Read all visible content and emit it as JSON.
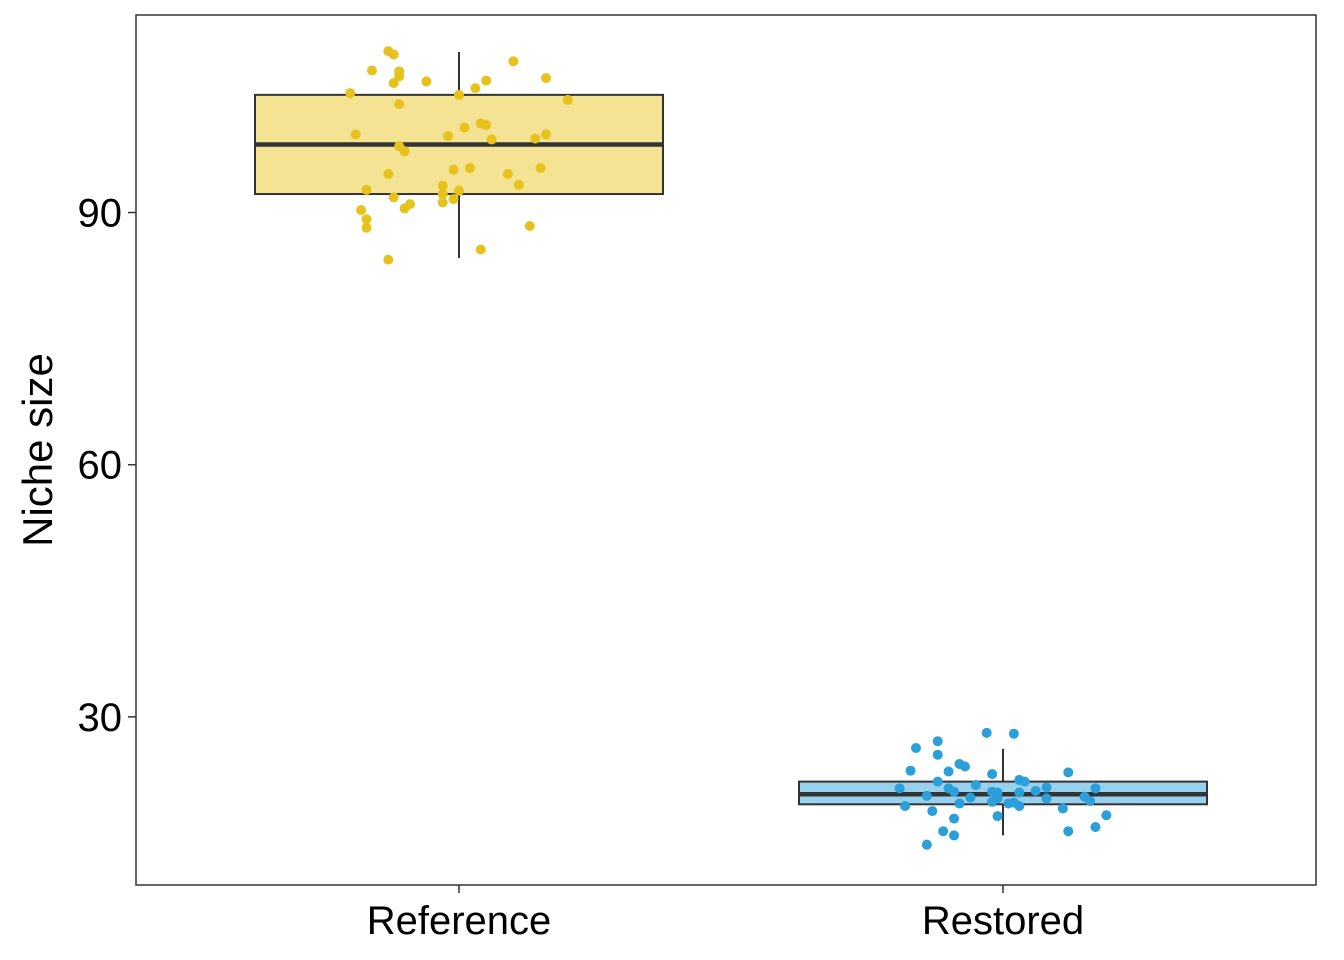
{
  "chart_data": {
    "type": "box",
    "title": "",
    "xlabel": "",
    "ylabel": "Niche size",
    "ylim": [
      10,
      113.5
    ],
    "yticks": [
      30,
      60,
      90
    ],
    "grid": false,
    "legend": "none",
    "categories": [
      "Reference",
      "Restored"
    ],
    "groups": [
      {
        "category": "Reference",
        "fill": "#f5e394",
        "point_color": "#e8c21c",
        "box": {
          "whisker_low": 84.6,
          "q1": 92.2,
          "median": 98.1,
          "q3": 104.0,
          "whisker_high": 109.1
        },
        "points": [
          [
            -0.13,
            109.2
          ],
          [
            -0.12,
            108.8
          ],
          [
            0.1,
            108.0
          ],
          [
            -0.16,
            106.9
          ],
          [
            -0.11,
            106.8
          ],
          [
            -0.11,
            106.2
          ],
          [
            0.16,
            106.0
          ],
          [
            0.05,
            105.7
          ],
          [
            -0.06,
            105.6
          ],
          [
            -0.12,
            105.4
          ],
          [
            0.03,
            104.8
          ],
          [
            -0.2,
            104.2
          ],
          [
            0.0,
            104.0
          ],
          [
            0.2,
            103.4
          ],
          [
            -0.11,
            102.9
          ],
          [
            0.04,
            100.6
          ],
          [
            0.05,
            100.4
          ],
          [
            0.01,
            100.1
          ],
          [
            -0.19,
            99.3
          ],
          [
            0.16,
            99.3
          ],
          [
            -0.02,
            99.1
          ],
          [
            0.14,
            98.8
          ],
          [
            0.06,
            98.7
          ],
          [
            -0.11,
            97.9
          ],
          [
            -0.1,
            97.3
          ],
          [
            0.15,
            95.3
          ],
          [
            0.02,
            95.3
          ],
          [
            -0.01,
            95.1
          ],
          [
            -0.13,
            94.6
          ],
          [
            0.09,
            94.6
          ],
          [
            0.11,
            93.3
          ],
          [
            -0.03,
            93.2
          ],
          [
            -0.17,
            92.7
          ],
          [
            0.0,
            92.6
          ],
          [
            -0.03,
            92.2
          ],
          [
            -0.12,
            91.8
          ],
          [
            -0.01,
            91.6
          ],
          [
            -0.03,
            91.2
          ],
          [
            -0.09,
            91.0
          ],
          [
            -0.1,
            90.5
          ],
          [
            -0.18,
            90.3
          ],
          [
            -0.17,
            89.2
          ],
          [
            0.13,
            88.4
          ],
          [
            -0.17,
            88.2
          ],
          [
            0.04,
            85.6
          ],
          [
            -0.13,
            84.4
          ]
        ]
      },
      {
        "category": "Restored",
        "fill": "#98d1ee",
        "point_color": "#2a9fd9",
        "box": {
          "whisker_low": 15.9,
          "q1": 19.6,
          "median": 20.8,
          "q3": 22.3,
          "whisker_high": 26.2
        },
        "points": [
          [
            -0.03,
            28.1
          ],
          [
            0.02,
            28.0
          ],
          [
            -0.12,
            27.1
          ],
          [
            -0.16,
            26.3
          ],
          [
            -0.12,
            25.5
          ],
          [
            -0.08,
            24.4
          ],
          [
            -0.07,
            24.1
          ],
          [
            -0.17,
            23.6
          ],
          [
            -0.1,
            23.5
          ],
          [
            0.12,
            23.4
          ],
          [
            -0.02,
            23.2
          ],
          [
            0.03,
            22.5
          ],
          [
            0.04,
            22.3
          ],
          [
            -0.12,
            22.3
          ],
          [
            -0.05,
            21.9
          ],
          [
            0.08,
            21.6
          ],
          [
            -0.1,
            21.5
          ],
          [
            0.17,
            21.5
          ],
          [
            0.06,
            21.2
          ],
          [
            -0.19,
            21.5
          ],
          [
            -0.09,
            21.1
          ],
          [
            -0.02,
            21.1
          ],
          [
            0.03,
            21.0
          ],
          [
            -0.01,
            21.0
          ],
          [
            -0.14,
            20.6
          ],
          [
            -0.06,
            20.4
          ],
          [
            0.15,
            20.5
          ],
          [
            0.08,
            20.3
          ],
          [
            -0.01,
            20.3
          ],
          [
            -0.02,
            19.9
          ],
          [
            0.01,
            19.7
          ],
          [
            0.16,
            20.0
          ],
          [
            -0.08,
            19.7
          ],
          [
            0.02,
            19.8
          ],
          [
            0.03,
            19.4
          ],
          [
            -0.18,
            19.4
          ],
          [
            0.11,
            19.1
          ],
          [
            -0.13,
            18.8
          ],
          [
            0.19,
            18.3
          ],
          [
            -0.01,
            18.2
          ],
          [
            -0.09,
            17.9
          ],
          [
            0.17,
            16.9
          ],
          [
            0.12,
            16.4
          ],
          [
            -0.11,
            16.4
          ],
          [
            -0.09,
            15.9
          ],
          [
            -0.14,
            14.8
          ]
        ]
      }
    ]
  }
}
